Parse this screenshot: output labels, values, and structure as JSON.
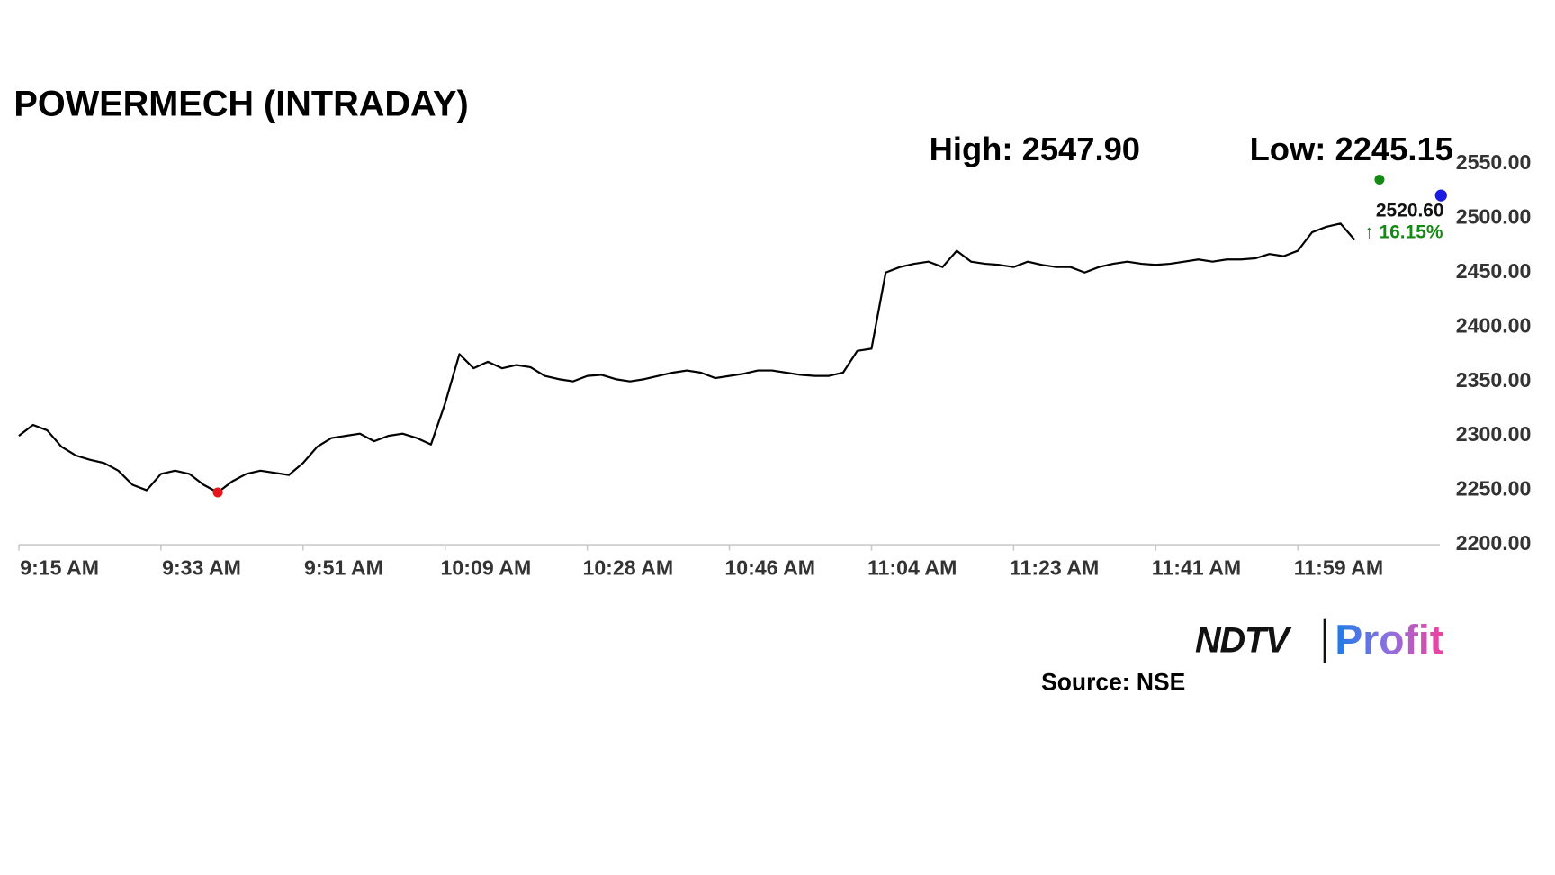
{
  "chart_data": {
    "type": "line",
    "title": "POWERMECH (INTRADAY)",
    "high_label": "High: 2547.90",
    "low_label": "Low: 2245.15",
    "last_price_label": "2520.60",
    "change_label": "↑ 16.15%",
    "source": "Source: NSE",
    "brand": "NDTV",
    "brand_suffix": "Profit",
    "color": "#000000",
    "low_marker_color": "#e8141b",
    "grid": false,
    "categories": [
      "9:15 AM",
      null,
      null,
      null,
      null,
      null,
      null,
      null,
      null,
      null,
      "9:33 AM",
      null,
      null,
      null,
      null,
      null,
      null,
      null,
      null,
      null,
      "9:51 AM",
      null,
      null,
      null,
      null,
      null,
      null,
      null,
      null,
      null,
      "10:09 AM",
      null,
      null,
      null,
      null,
      null,
      null,
      null,
      null,
      null,
      "10:28 AM",
      null,
      null,
      null,
      null,
      null,
      null,
      null,
      null,
      null,
      "10:46 AM",
      null,
      null,
      null,
      null,
      null,
      null,
      null,
      null,
      null,
      "11:04 AM",
      null,
      null,
      null,
      null,
      null,
      null,
      null,
      null,
      null,
      "11:23 AM",
      null,
      null,
      null,
      null,
      null,
      null,
      null,
      null,
      null,
      "11:41 AM",
      null,
      null,
      null,
      null,
      null,
      null,
      null,
      null,
      null,
      "11:59 AM",
      null,
      null,
      null,
      null,
      null,
      null,
      null,
      null,
      null,
      null
    ],
    "values": [
      2300,
      2310,
      2305,
      2290,
      2282,
      2278,
      2275,
      2268,
      2255,
      2250,
      2265,
      2268,
      2265,
      2255,
      2248,
      2258,
      2265,
      2268,
      2266,
      2264,
      2275,
      2290,
      2298,
      2300,
      2302,
      2295,
      2300,
      2302,
      2298,
      2292,
      2330,
      2375,
      2362,
      2368,
      2362,
      2365,
      2363,
      2355,
      2352,
      2350,
      2355,
      2356,
      2352,
      2350,
      2352,
      2355,
      2358,
      2360,
      2358,
      2353,
      2355,
      2357,
      2360,
      2360,
      2358,
      2356,
      2355,
      2355,
      2358,
      2378,
      2380,
      2450,
      2455,
      2458,
      2460,
      2455,
      2470,
      2460,
      2458,
      2457,
      2455,
      2460,
      2457,
      2455,
      2455,
      2450,
      2455,
      2458,
      2460,
      2458,
      2457,
      2458,
      2460,
      2462,
      2460,
      2462,
      2462,
      2463,
      2467,
      2465,
      2470,
      2487,
      2492,
      2495,
      2480,
      null,
      null,
      null,
      null,
      null,
      null
    ],
    "low_index": 14,
    "ylim": [
      2200,
      2550
    ],
    "yticks": [
      {
        "value": 2200,
        "label": "2200.00"
      },
      {
        "value": 2250,
        "label": "2250.00"
      },
      {
        "value": 2300,
        "label": "2300.00"
      },
      {
        "value": 2350,
        "label": "2350.00"
      },
      {
        "value": 2400,
        "label": "2400.00"
      },
      {
        "value": 2450,
        "label": "2450.00"
      },
      {
        "value": 2500,
        "label": "2500.00"
      },
      {
        "value": 2550,
        "label": "2550.00"
      }
    ]
  }
}
